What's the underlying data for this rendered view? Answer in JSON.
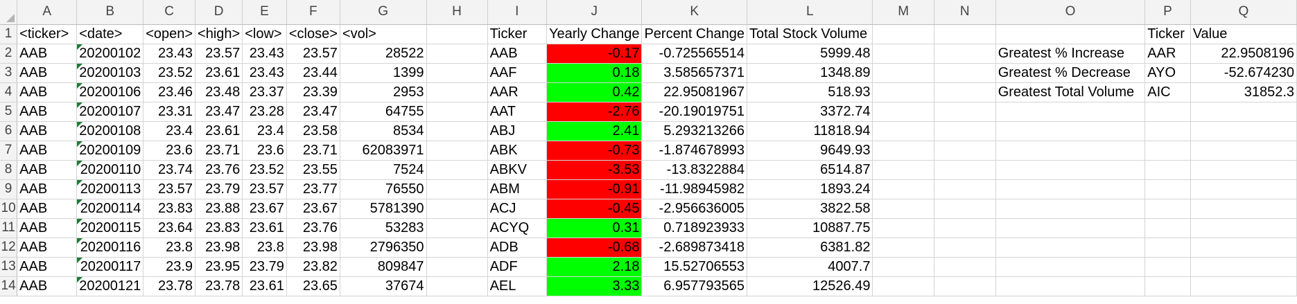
{
  "columns": [
    "A",
    "B",
    "C",
    "D",
    "E",
    "F",
    "G",
    "H",
    "I",
    "J",
    "K",
    "L",
    "M",
    "N",
    "O",
    "P",
    "Q"
  ],
  "headers": {
    "ticker": "<ticker>",
    "date": "<date>",
    "open": "<open>",
    "high": "<high>",
    "low": "<low>",
    "close": "<close>",
    "vol": "<vol>",
    "summary_ticker": "Ticker",
    "yearly_change": "Yearly Change",
    "percent_change": "Percent Change",
    "total_volume": "Total Stock Volume",
    "o_label": "",
    "p_ticker": "Ticker",
    "q_value": "Value"
  },
  "raw_rows": [
    {
      "ticker": "AAB",
      "date": "20200102",
      "open": "23.43",
      "high": "23.57",
      "low": "23.43",
      "close": "23.57",
      "vol": "28522"
    },
    {
      "ticker": "AAB",
      "date": "20200103",
      "open": "23.52",
      "high": "23.61",
      "low": "23.43",
      "close": "23.44",
      "vol": "1399"
    },
    {
      "ticker": "AAB",
      "date": "20200106",
      "open": "23.46",
      "high": "23.48",
      "low": "23.37",
      "close": "23.39",
      "vol": "2953"
    },
    {
      "ticker": "AAB",
      "date": "20200107",
      "open": "23.31",
      "high": "23.47",
      "low": "23.28",
      "close": "23.47",
      "vol": "64755"
    },
    {
      "ticker": "AAB",
      "date": "20200108",
      "open": "23.4",
      "high": "23.61",
      "low": "23.4",
      "close": "23.58",
      "vol": "8534"
    },
    {
      "ticker": "AAB",
      "date": "20200109",
      "open": "23.6",
      "high": "23.71",
      "low": "23.6",
      "close": "23.71",
      "vol": "62083971"
    },
    {
      "ticker": "AAB",
      "date": "20200110",
      "open": "23.74",
      "high": "23.76",
      "low": "23.52",
      "close": "23.55",
      "vol": "7524"
    },
    {
      "ticker": "AAB",
      "date": "20200113",
      "open": "23.57",
      "high": "23.79",
      "low": "23.57",
      "close": "23.77",
      "vol": "76550"
    },
    {
      "ticker": "AAB",
      "date": "20200114",
      "open": "23.83",
      "high": "23.88",
      "low": "23.67",
      "close": "23.67",
      "vol": "5781390"
    },
    {
      "ticker": "AAB",
      "date": "20200115",
      "open": "23.64",
      "high": "23.83",
      "low": "23.61",
      "close": "23.76",
      "vol": "53283"
    },
    {
      "ticker": "AAB",
      "date": "20200116",
      "open": "23.8",
      "high": "23.98",
      "low": "23.8",
      "close": "23.98",
      "vol": "2796350"
    },
    {
      "ticker": "AAB",
      "date": "20200117",
      "open": "23.9",
      "high": "23.95",
      "low": "23.79",
      "close": "23.82",
      "vol": "809847"
    },
    {
      "ticker": "AAB",
      "date": "20200121",
      "open": "23.78",
      "high": "23.78",
      "low": "23.61",
      "close": "23.65",
      "vol": "37674"
    }
  ],
  "summary_rows": [
    {
      "ticker": "AAB",
      "yearly_change": "-0.17",
      "percent_change": "-0.725565514",
      "total_volume": "5999.48",
      "status": "neg"
    },
    {
      "ticker": "AAF",
      "yearly_change": "0.18",
      "percent_change": "3.585657371",
      "total_volume": "1348.89",
      "status": "pos"
    },
    {
      "ticker": "AAR",
      "yearly_change": "0.42",
      "percent_change": "22.95081967",
      "total_volume": "518.93",
      "status": "pos"
    },
    {
      "ticker": "AAT",
      "yearly_change": "-2.76",
      "percent_change": "-20.19019751",
      "total_volume": "3372.74",
      "status": "neg"
    },
    {
      "ticker": "ABJ",
      "yearly_change": "2.41",
      "percent_change": "5.293213266",
      "total_volume": "11818.94",
      "status": "pos"
    },
    {
      "ticker": "ABK",
      "yearly_change": "-0.73",
      "percent_change": "-1.874678993",
      "total_volume": "9649.93",
      "status": "neg"
    },
    {
      "ticker": "ABKV",
      "yearly_change": "-3.53",
      "percent_change": "-13.8322884",
      "total_volume": "6514.87",
      "status": "neg"
    },
    {
      "ticker": "ABM",
      "yearly_change": "-0.91",
      "percent_change": "-11.98945982",
      "total_volume": "1893.24",
      "status": "neg"
    },
    {
      "ticker": "ACJ",
      "yearly_change": "-0.45",
      "percent_change": "-2.956636005",
      "total_volume": "3822.58",
      "status": "neg"
    },
    {
      "ticker": "ACYQ",
      "yearly_change": "0.31",
      "percent_change": "0.718923933",
      "total_volume": "10887.75",
      "status": "pos"
    },
    {
      "ticker": "ADB",
      "yearly_change": "-0.68",
      "percent_change": "-2.689873418",
      "total_volume": "6381.82",
      "status": "neg"
    },
    {
      "ticker": "ADF",
      "yearly_change": "2.18",
      "percent_change": "15.52706553",
      "total_volume": "4007.7",
      "status": "pos"
    },
    {
      "ticker": "AEL",
      "yearly_change": "3.33",
      "percent_change": "6.957793565",
      "total_volume": "12526.49",
      "status": "pos"
    }
  ],
  "greatest": [
    {
      "label": "Greatest % Increase",
      "ticker": "AAR",
      "value": "22.9508196"
    },
    {
      "label": "Greatest % Decrease",
      "ticker": "AYO",
      "value": "-52.674230"
    },
    {
      "label": "Greatest Total Volume",
      "ticker": "AIC",
      "value": "31852.3"
    }
  ],
  "colors": {
    "positive": "#00ff00",
    "negative": "#ff0000",
    "header_bg": "#f3f3f3",
    "gridline": "#d4d4d4"
  }
}
